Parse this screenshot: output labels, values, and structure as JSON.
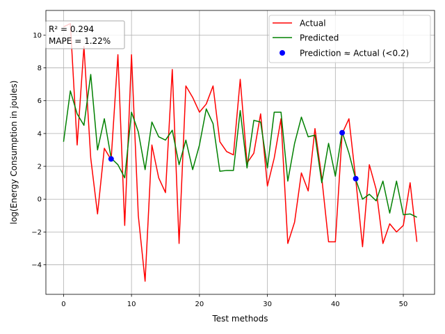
{
  "chart_data": {
    "type": "line",
    "xlabel": "Test methods",
    "ylabel": "log(Energy Consumption in joules)",
    "xlim": [
      -2.6,
      54.6
    ],
    "ylim": [
      -5.8,
      11.5
    ],
    "xticks": [
      0,
      10,
      20,
      30,
      40,
      50
    ],
    "yticks": [
      -4,
      -2,
      0,
      2,
      4,
      6,
      8,
      10
    ],
    "grid": true,
    "legend_position": "top-right",
    "annotation": [
      "R² = 0.294",
      "MAPE = 1.22%"
    ],
    "colors": {
      "actual": "#ff0000",
      "predicted": "#008000",
      "match": "#0000ff"
    },
    "x": [
      0,
      1,
      2,
      3,
      4,
      5,
      6,
      7,
      8,
      9,
      10,
      11,
      12,
      13,
      14,
      15,
      16,
      17,
      18,
      19,
      20,
      21,
      22,
      23,
      24,
      25,
      26,
      27,
      28,
      29,
      30,
      31,
      32,
      33,
      34,
      35,
      36,
      37,
      38,
      39,
      40,
      41,
      42,
      43,
      44,
      45,
      46,
      47,
      48,
      49,
      50,
      51,
      52
    ],
    "series": [
      {
        "name": "Actual",
        "color": "#ff0000",
        "values": [
          10.5,
          10.7,
          3.3,
          9.3,
          2.5,
          -0.9,
          3.1,
          2.4,
          8.8,
          -1.6,
          8.8,
          -1.0,
          -5.0,
          3.3,
          1.3,
          0.4,
          7.9,
          -2.7,
          6.9,
          6.2,
          5.3,
          5.8,
          6.9,
          3.5,
          2.9,
          2.7,
          7.3,
          2.2,
          2.8,
          5.2,
          0.8,
          2.5,
          4.9,
          -2.7,
          -1.4,
          1.6,
          0.5,
          4.3,
          1.3,
          -2.6,
          -2.6,
          4.0,
          4.9,
          1.2,
          -2.9,
          2.1,
          0.6,
          -2.7,
          -1.5,
          -2.0,
          -1.6,
          1.0,
          -2.6
        ]
      },
      {
        "name": "Predicted",
        "color": "#008000",
        "values": [
          3.5,
          6.6,
          5.2,
          4.5,
          7.6,
          3.0,
          4.9,
          2.5,
          2.1,
          1.3,
          5.3,
          4.1,
          1.8,
          4.7,
          3.8,
          3.6,
          4.2,
          2.1,
          3.6,
          1.8,
          3.3,
          5.5,
          4.6,
          1.7,
          1.75,
          1.75,
          5.4,
          1.9,
          4.8,
          4.7,
          1.9,
          5.3,
          5.3,
          1.1,
          3.4,
          5.0,
          3.8,
          3.9,
          1.0,
          3.4,
          1.4,
          4.1,
          2.8,
          1.2,
          0.0,
          0.3,
          -0.1,
          1.1,
          -0.85,
          1.1,
          -0.95,
          -0.9,
          -1.1
        ]
      },
      {
        "name": "Prediction ≈ Actual (<0.2)",
        "color": "#0000ff",
        "type": "scatter",
        "points": [
          {
            "x": 7,
            "y": 2.45
          },
          {
            "x": 41,
            "y": 4.05
          },
          {
            "x": 43,
            "y": 1.25
          }
        ]
      }
    ]
  }
}
